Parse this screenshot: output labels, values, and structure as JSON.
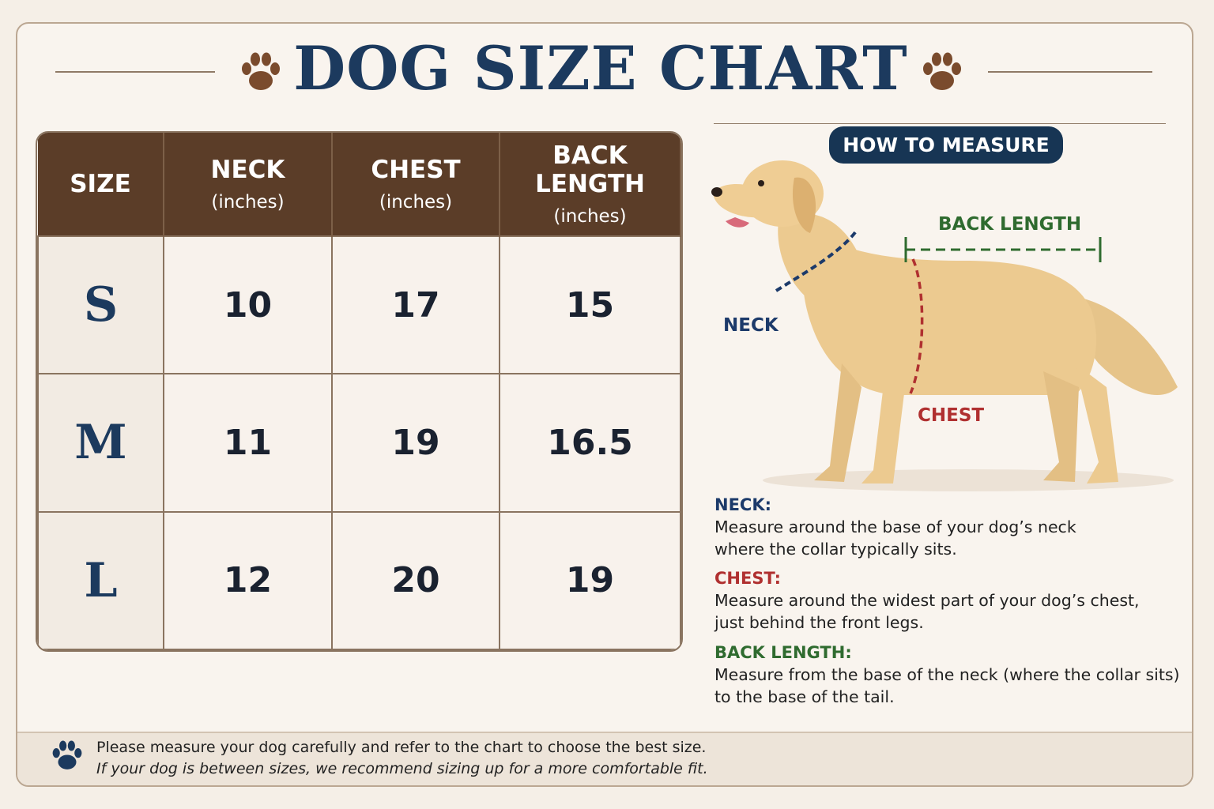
{
  "header": {
    "title": "DOG SIZE CHART"
  },
  "table": {
    "columns": [
      {
        "name": "SIZE"
      },
      {
        "name": "NECK",
        "unit": "(inches)"
      },
      {
        "name": "CHEST",
        "unit": "(inches)"
      },
      {
        "name": "BACK LENGTH",
        "unit": "(inches)"
      }
    ],
    "rows": [
      [
        "S",
        10,
        17,
        15
      ],
      [
        "M",
        11,
        19,
        16.5
      ],
      [
        "L",
        12,
        20,
        19
      ]
    ]
  },
  "measure": {
    "title": "HOW TO MEASURE",
    "diagram_labels": {
      "back_length": "BACK LENGTH",
      "neck": "NECK",
      "chest": "CHEST"
    },
    "instructions": [
      {
        "term": "NECK:",
        "lines": [
          "Measure around the base of your dog’s neck",
          "where the collar typically sits."
        ]
      },
      {
        "term": "CHEST:",
        "lines": [
          "Measure around the widest part of your dog’s chest,",
          "just behind the front legs."
        ]
      },
      {
        "term": "BACK LENGTH:",
        "lines": [
          "Measure from the base of the neck (where the collar sits)",
          "to the base of the tail."
        ]
      }
    ]
  },
  "footer": {
    "lines": [
      "Please measure your dog carefully and refer to the chart to choose the best size.",
      "If your dog is between sizes, we recommend sizing up for a more comfortable fit."
    ]
  }
}
